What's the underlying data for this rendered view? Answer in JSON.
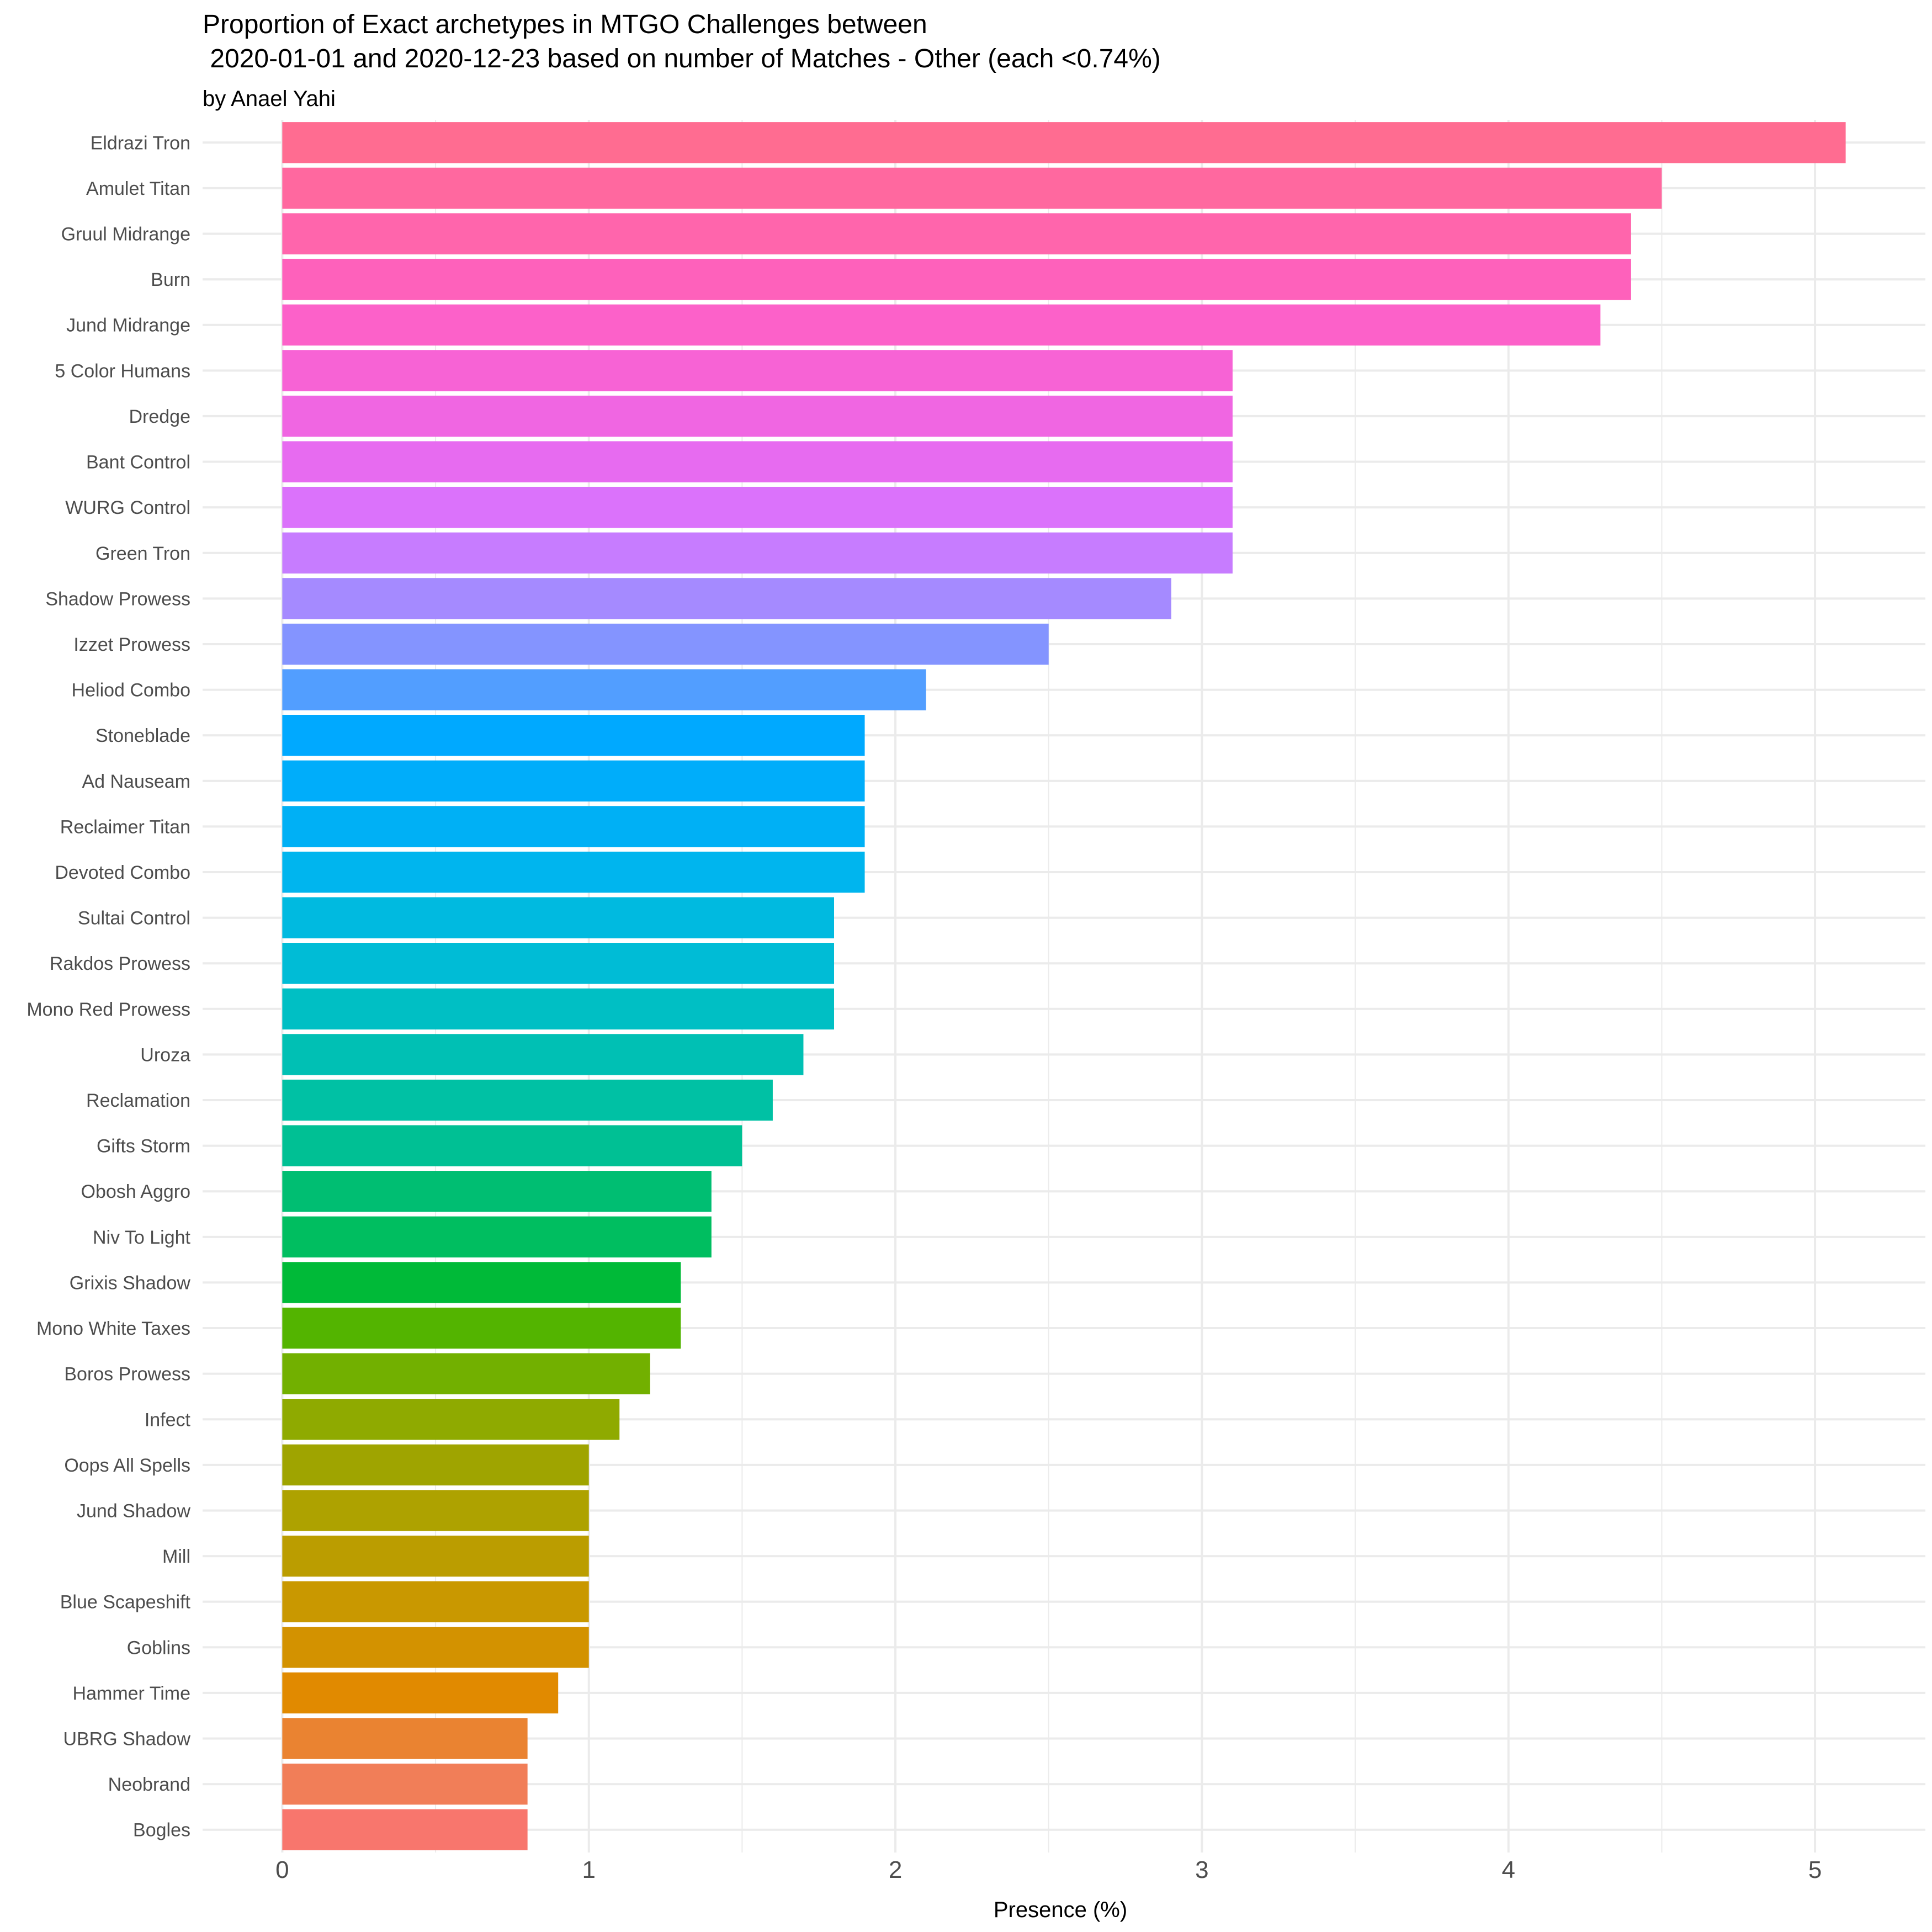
{
  "chart_data": {
    "type": "bar",
    "orientation": "horizontal",
    "title_line1": "Proportion of Exact archetypes in MTGO Challenges between",
    "title_line2": " 2020-01-01 and 2020-12-23 based on number of Matches - Other (each <0.74%)",
    "subtitle": "by Anael Yahi",
    "xlabel": "Presence (%)",
    "ylabel": "",
    "xlim": [
      -0.26,
      5.36
    ],
    "x_ticks": [
      0,
      1,
      2,
      3,
      4,
      5
    ],
    "grid": true,
    "legend": "none",
    "categories": [
      "Eldrazi Tron",
      "Amulet Titan",
      "Gruul Midrange",
      "Burn",
      "Jund Midrange",
      "5 Color Humans",
      "Dredge",
      "Bant Control",
      "WURG Control",
      "Green Tron",
      "Shadow Prowess",
      "Izzet Prowess",
      "Heliod Combo",
      "Stoneblade",
      "Ad Nauseam",
      "Reclaimer Titan",
      "Devoted Combo",
      "Sultai Control",
      "Rakdos Prowess",
      "Mono Red Prowess",
      "Uroza",
      "Reclamation",
      "Gifts Storm",
      "Obosh Aggro",
      "Niv To Light",
      "Grixis Shadow",
      "Mono White Taxes",
      "Boros Prowess",
      "Infect",
      "Oops All Spells",
      "Jund Shadow",
      "Mill",
      "Blue Scapeshift",
      "Goblins",
      "Hammer Time",
      "UBRG Shadow",
      "Neobrand",
      "Bogles"
    ],
    "values": [
      5.1,
      4.5,
      4.4,
      4.4,
      4.3,
      3.1,
      3.1,
      3.1,
      3.1,
      3.1,
      2.9,
      2.5,
      2.1,
      1.9,
      1.9,
      1.9,
      1.9,
      1.8,
      1.8,
      1.8,
      1.7,
      1.6,
      1.5,
      1.4,
      1.4,
      1.3,
      1.3,
      1.2,
      1.1,
      1.0,
      1.0,
      1.0,
      1.0,
      1.0,
      0.9,
      0.8,
      0.8,
      0.8
    ],
    "colors": [
      "#FF6C91",
      "#FF689F",
      "#FF65AC",
      "#FE61BB",
      "#FC61C9",
      "#F763D5",
      "#F066E2",
      "#E76BF0",
      "#DB72FB",
      "#C77CFF",
      "#A58AFF",
      "#8494FF",
      "#529EFF",
      "#00A9FF",
      "#00ADFA",
      "#00B0F5",
      "#00B5EE",
      "#00BAE0",
      "#00BCD6",
      "#00BFC4",
      "#00C0B4",
      "#00C1A4",
      "#00C094",
      "#00BE72",
      "#00BE60",
      "#00BA38",
      "#53B400",
      "#72B000",
      "#8FAA00",
      "#9FA400",
      "#AEA200",
      "#BB9D00",
      "#C99800",
      "#D39200",
      "#E18A00",
      "#EA8331",
      "#F17E58",
      "#F8766D"
    ]
  }
}
